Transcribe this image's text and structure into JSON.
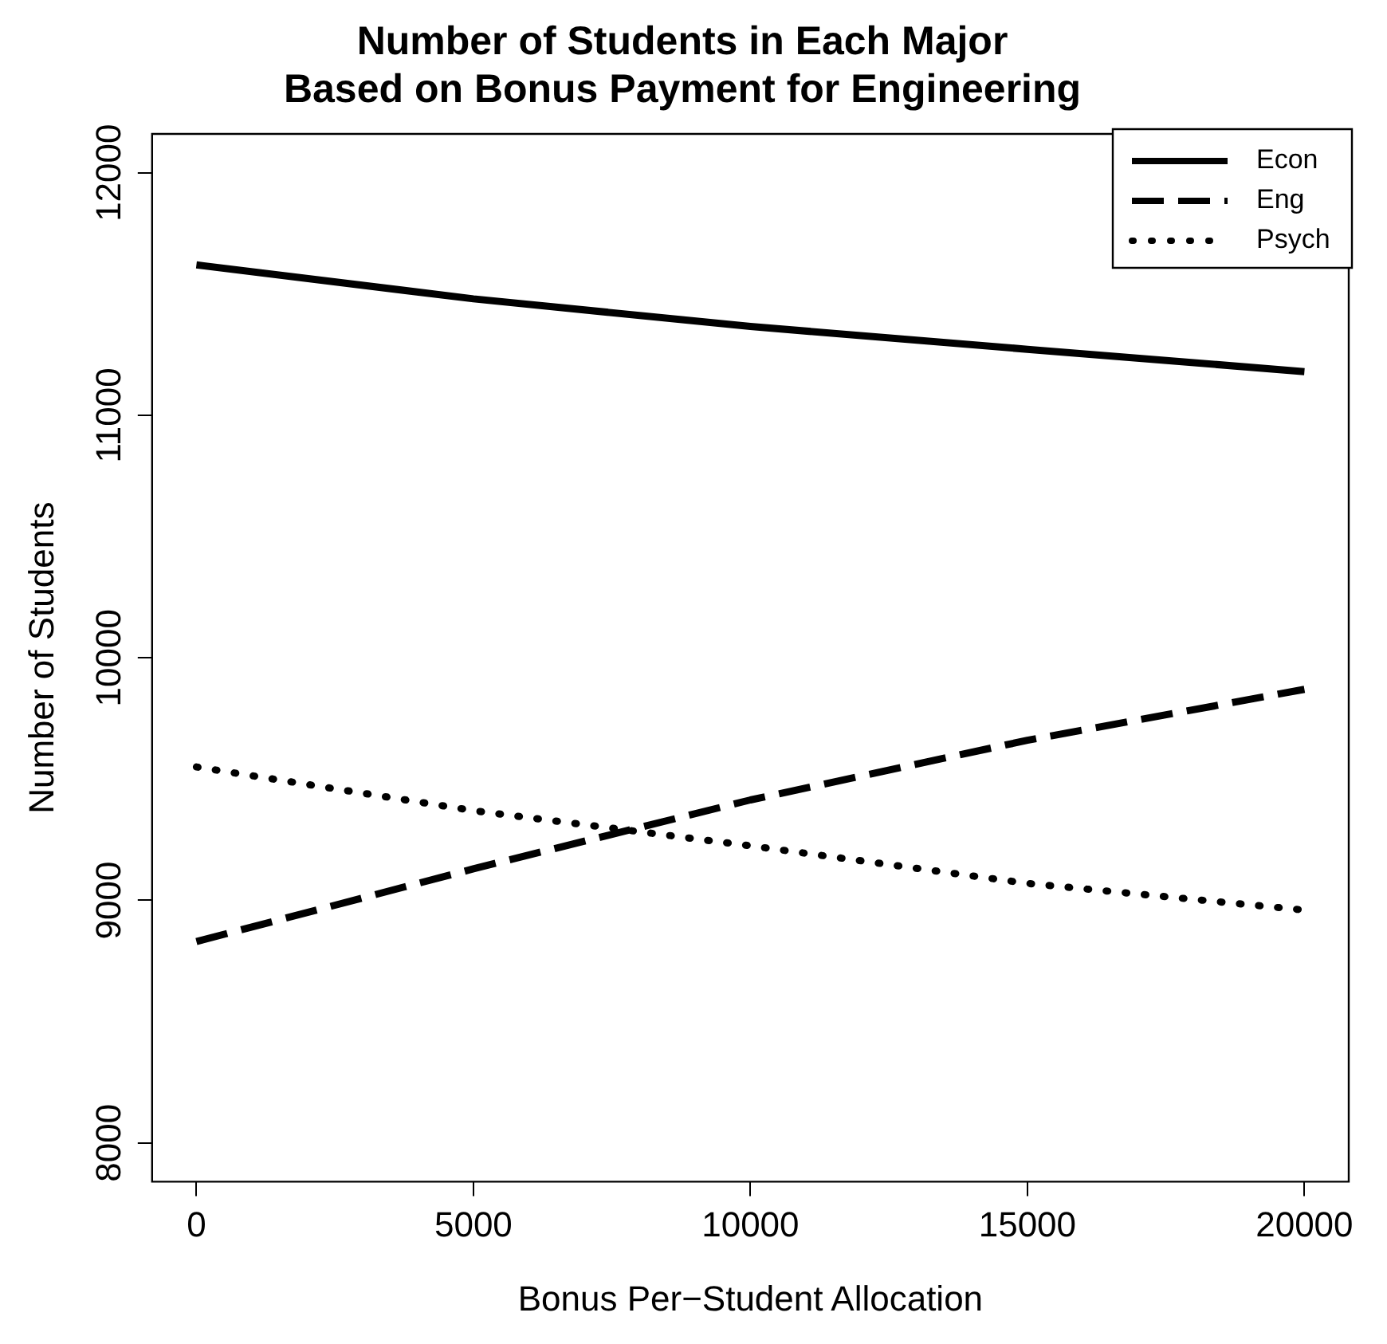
{
  "chart_data": {
    "type": "line",
    "title": "Number of Students in Each Major\nBased on Bonus Payment for Engineering",
    "xlabel": "Bonus Per−Student Allocation",
    "ylabel": "Number of Students",
    "x": [
      0,
      5000,
      10000,
      15000,
      20000
    ],
    "series": [
      {
        "name": "Econ",
        "color": "#000000",
        "line_style": "solid",
        "values": [
          11620,
          11480,
          11366,
          11272,
          11180
        ]
      },
      {
        "name": "Eng",
        "color": "#000000",
        "line_style": "dashed",
        "values": [
          8830,
          9130,
          9414,
          9660,
          9870
        ]
      },
      {
        "name": "Psych",
        "color": "#000000",
        "line_style": "dotted",
        "values": [
          9550,
          9370,
          9225,
          9070,
          8960
        ]
      }
    ],
    "xlim": [
      -800,
      20800
    ],
    "xticks": [
      0,
      5000,
      10000,
      15000,
      20000
    ],
    "ylim": [
      7840,
      12160
    ],
    "yticks": [
      8000,
      9000,
      10000,
      11000,
      12000
    ],
    "grid": false,
    "legend": "top right",
    "marker": "none"
  }
}
